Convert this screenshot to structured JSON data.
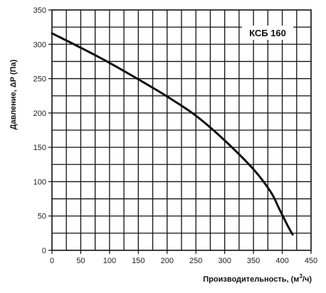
{
  "chart_data": {
    "type": "line",
    "title": "",
    "series_label": "КСБ 160",
    "xlabel": "Производительность, (м",
    "xlabel_sup": "3",
    "xlabel_end": "/ч)",
    "ylabel": "Давление, ΔP (Па)",
    "xlim": [
      0,
      450
    ],
    "ylim": [
      0,
      350
    ],
    "xticks": [
      0,
      50,
      100,
      150,
      200,
      250,
      300,
      350,
      400,
      450
    ],
    "yticks": [
      0,
      50,
      100,
      150,
      200,
      250,
      300,
      350
    ],
    "grid": true,
    "colors": {
      "line": "#111111",
      "grid": "#111111",
      "frame": "#111111"
    },
    "series": [
      {
        "name": "КСБ 160",
        "x": [
          0,
          50,
          100,
          150,
          200,
          250,
          300,
          350,
          380,
          395,
          410,
          418
        ],
        "y": [
          316,
          295,
          273,
          249,
          224,
          196,
          160,
          118,
          85,
          60,
          35,
          23
        ]
      }
    ]
  }
}
